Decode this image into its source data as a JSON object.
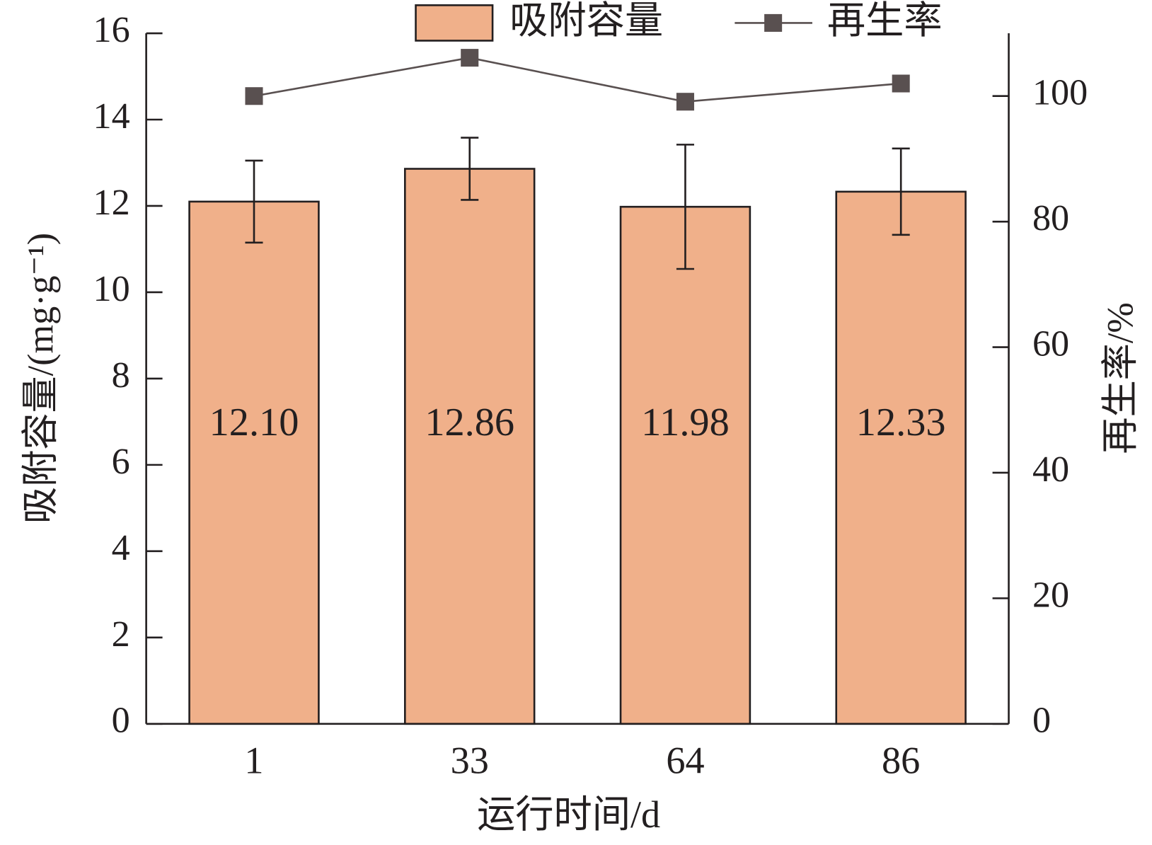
{
  "chart_data": {
    "type": "bar",
    "x_label": "运行时间/d",
    "y_label": "吸附容量/(mg·g⁻¹)",
    "y2_label": "再生率/%",
    "categories": [
      "1",
      "33",
      "64",
      "86"
    ],
    "series": [
      {
        "name": "吸附容量",
        "type": "bar",
        "color": "#f0b08a",
        "values": [
          12.1,
          12.86,
          11.98,
          12.33
        ],
        "value_labels": [
          "12.10",
          "12.86",
          "11.98",
          "12.33"
        ],
        "errors": [
          0.95,
          0.72,
          1.44,
          1.0
        ]
      },
      {
        "name": "再生率",
        "type": "line",
        "axis": "y2",
        "color": "#595050",
        "values": [
          100,
          106.1,
          99.1,
          102.0
        ]
      }
    ],
    "ylim": [
      0,
      16
    ],
    "yticks": [
      0,
      2,
      4,
      6,
      8,
      10,
      12,
      14,
      16
    ],
    "y2lim": [
      0,
      110
    ],
    "y2ticks": [
      0,
      20,
      40,
      60,
      80,
      100
    ],
    "grid": false,
    "legend": "top"
  }
}
